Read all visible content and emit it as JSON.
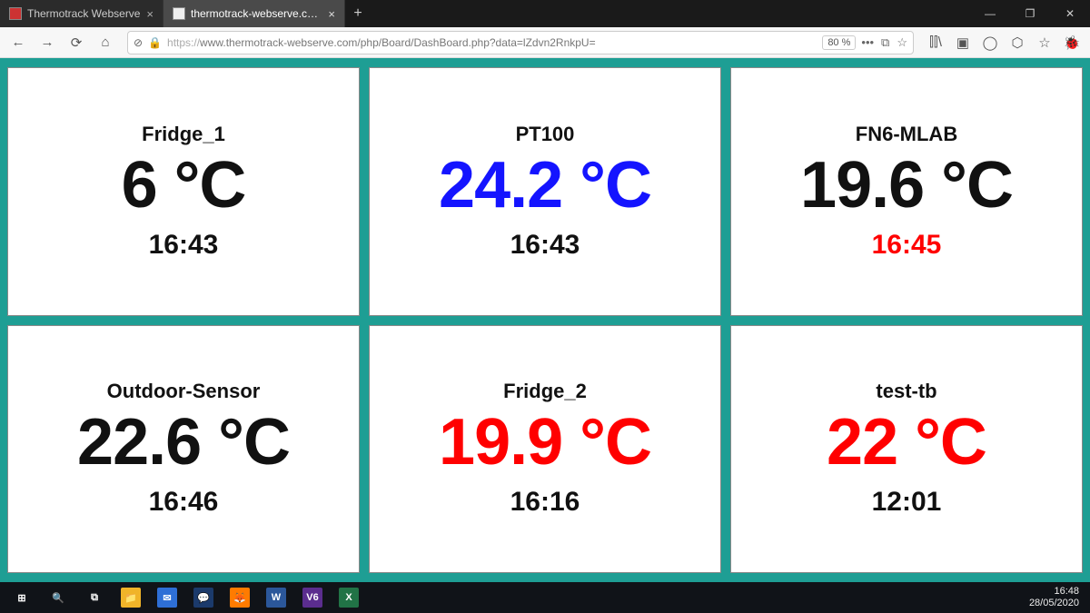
{
  "window": {
    "tabs": [
      {
        "title": "Thermotrack Webserve",
        "active": false
      },
      {
        "title": "thermotrack-webserve.com/ph",
        "active": true
      }
    ],
    "controls": {
      "minimize": "—",
      "maximize": "❐",
      "close": "✕"
    }
  },
  "toolbar": {
    "back": "←",
    "forward": "→",
    "reload": "⟳",
    "home": "⌂",
    "shield": "⊘",
    "lock": "🔒",
    "url_prefix": "https://",
    "url_rest": "www.thermotrack-webserve.com/php/Board/DashBoard.php?data=lZdvn2RnkpU=",
    "zoom": "80 %",
    "more": "•••",
    "reader": "⧉",
    "star": "☆",
    "right_icons": {
      "library": "⫿⫿\\",
      "sidebar": "▣",
      "account": "◯",
      "ext1": "⬡",
      "ext2": "☆",
      "ext3": "🐞"
    }
  },
  "dashboard": {
    "background_color": "#1e9e94",
    "card_bg": "#ffffff",
    "card_border": "#888888",
    "colors": {
      "black": "#111111",
      "red": "#ff0000",
      "blue": "#1414ff"
    },
    "cards": [
      {
        "name": "Fridge_1",
        "value": "6 °C",
        "value_color": "black",
        "time": "16:43",
        "time_color": "black"
      },
      {
        "name": "PT100",
        "value": "24.2 °C",
        "value_color": "blue",
        "time": "16:43",
        "time_color": "black"
      },
      {
        "name": "FN6-MLAB",
        "value": "19.6 °C",
        "value_color": "black",
        "time": "16:45",
        "time_color": "red"
      },
      {
        "name": "Outdoor-Sensor",
        "value": "22.6 °C",
        "value_color": "black",
        "time": "16:46",
        "time_color": "black"
      },
      {
        "name": "Fridge_2",
        "value": "19.9 °C",
        "value_color": "red",
        "time": "16:16",
        "time_color": "black"
      },
      {
        "name": "test-tb",
        "value": "22 °C",
        "value_color": "red",
        "time": "12:01",
        "time_color": "black"
      }
    ]
  },
  "taskbar": {
    "time": "16:48",
    "date": "28/05/2020",
    "apps": [
      {
        "label": "⊞",
        "bg": "transparent",
        "title": "start"
      },
      {
        "label": "🔍",
        "bg": "transparent",
        "title": "search"
      },
      {
        "label": "⧉",
        "bg": "transparent",
        "title": "taskview"
      },
      {
        "label": "📁",
        "bg": "#f0b429",
        "title": "explorer"
      },
      {
        "label": "✉",
        "bg": "#2e6fd6",
        "title": "mail"
      },
      {
        "label": "💬",
        "bg": "#1b3a6b",
        "title": "chat"
      },
      {
        "label": "🦊",
        "bg": "#ff7b00",
        "title": "firefox"
      },
      {
        "label": "W",
        "bg": "#2b579a",
        "title": "word"
      },
      {
        "label": "V6",
        "bg": "#5b2d8e",
        "title": "v6"
      },
      {
        "label": "X",
        "bg": "#217346",
        "title": "excel"
      }
    ]
  }
}
